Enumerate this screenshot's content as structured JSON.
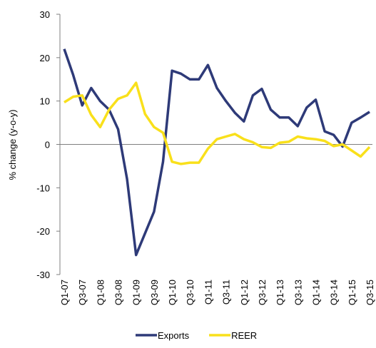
{
  "chart_data": {
    "type": "line",
    "y_label": "% change (y-o-y)",
    "categories": [
      "Q1-07",
      null,
      "Q3-07",
      null,
      "Q1-08",
      null,
      "Q3-08",
      null,
      "Q1-09",
      null,
      "Q3-09",
      null,
      "Q1-10",
      null,
      "Q3-10",
      null,
      "Q1-11",
      null,
      "Q3-11",
      null,
      "Q1-12",
      null,
      "Q3-12",
      null,
      "Q1-13",
      null,
      "Q3-13",
      null,
      "Q1-14",
      null,
      "Q3-14",
      null,
      "Q1-15",
      null,
      "Q3-15"
    ],
    "series": [
      {
        "name": "Exports",
        "color": "#2e3a78",
        "values": [
          22,
          16,
          9,
          13,
          10,
          8,
          3.5,
          -8,
          -25.5,
          -20.5,
          -15.5,
          -4,
          17,
          16.3,
          15,
          15,
          18.3,
          13,
          10,
          7.3,
          5.3,
          11.3,
          12.8,
          8,
          6.2,
          6.2,
          4.2,
          8.5,
          10.3,
          3,
          2.2,
          -0.5,
          5,
          6.2,
          7.5
        ]
      },
      {
        "name": "REER",
        "color": "#f9e01b",
        "values": [
          9.7,
          11,
          11.3,
          6.8,
          4,
          8,
          10.5,
          11.3,
          14.2,
          7,
          4,
          2.7,
          -4,
          -4.5,
          -4.2,
          -4.2,
          -1,
          1.2,
          1.8,
          2.4,
          1.2,
          0.5,
          -0.6,
          -0.8,
          0.4,
          0.6,
          1.8,
          1.4,
          1.2,
          0.8,
          -0.4,
          0,
          -1.4,
          -2.8,
          -0.6
        ]
      }
    ],
    "ylim": [
      -30,
      30
    ],
    "yticks": [
      -30,
      -20,
      -10,
      0,
      10,
      20,
      30
    ],
    "grid": false,
    "legend": "bottom"
  }
}
